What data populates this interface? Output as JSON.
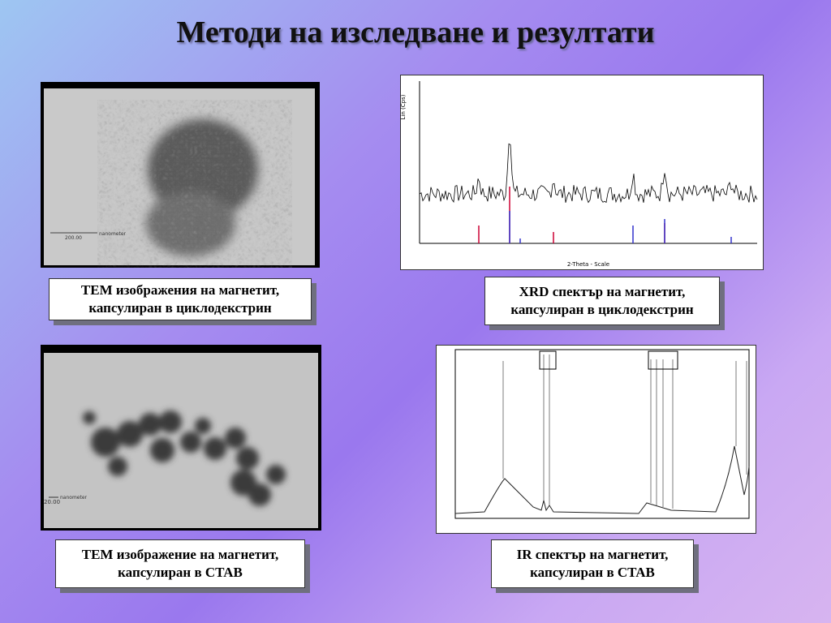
{
  "header": {
    "title": "Методи на изследване и резултати"
  },
  "panels": [
    {
      "caption": [
        "ТЕМ изображения  на магнетит,",
        "капсулиран в циклодекстрин"
      ],
      "scale_label": "200.00",
      "scale_unit": "nanometer"
    },
    {
      "caption": [
        "XRD спектър на магнетит,",
        "капсулиран в циклодекстрин"
      ],
      "y_axis_label": "Lin (Cps)",
      "x_axis_label": "2-Theta - Scale"
    },
    {
      "caption": [
        "ТЕМ изображение на магнетит,",
        "капсулиран в CTAB"
      ],
      "scale_label": "20.00",
      "scale_unit": "nanometer"
    },
    {
      "caption": [
        "IR спектър на магнетит,",
        "капсулиран в CTAB"
      ]
    }
  ]
}
